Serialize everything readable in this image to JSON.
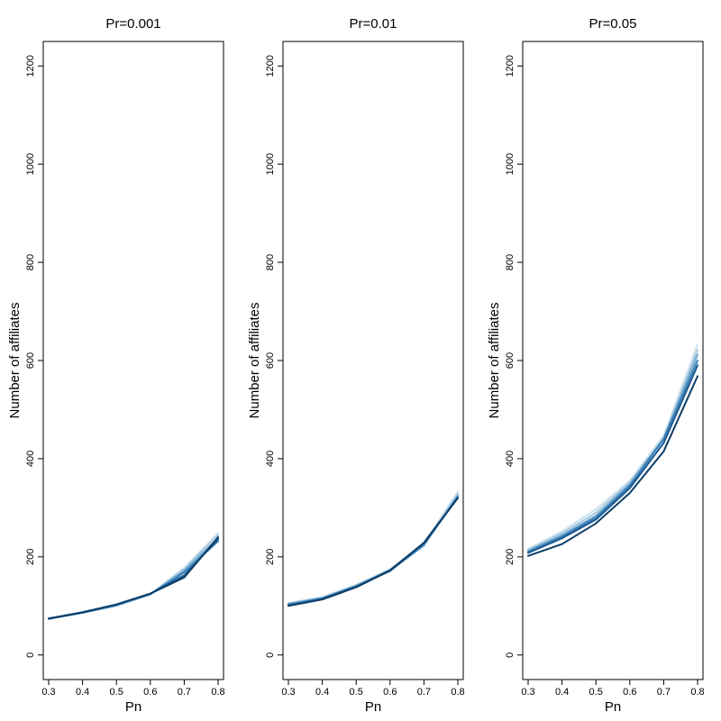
{
  "chart_data": [
    {
      "type": "line",
      "title": "Pr=0.001",
      "xlabel": "Pn",
      "ylabel": "Number of affiliates",
      "x": [
        0.3,
        0.4,
        0.5,
        0.6,
        0.7,
        0.8
      ],
      "x_ticks": [
        "0.3",
        "0.4",
        "0.5",
        "0.6",
        "0.7",
        "0.8"
      ],
      "y_ticks": [
        "0",
        "200",
        "400",
        "600",
        "800",
        "1000",
        "1200"
      ],
      "xlim": [
        0.3,
        0.8
      ],
      "ylim": [
        -50,
        1250
      ],
      "grid": false,
      "series": [
        {
          "color": "#cfe3ef",
          "values": [
            76,
            87,
            101,
            124,
            178,
            248
          ]
        },
        {
          "color": "#a6c9e0",
          "values": [
            75,
            86,
            100,
            123,
            175,
            245
          ]
        },
        {
          "color": "#6fa8cf",
          "values": [
            74,
            86,
            101,
            124,
            172,
            238
          ]
        },
        {
          "color": "#3c7fb4",
          "values": [
            74,
            86,
            102,
            124,
            168,
            232
          ]
        },
        {
          "color": "#1a5a92",
          "values": [
            74,
            87,
            103,
            125,
            162,
            236
          ]
        },
        {
          "color": "#0d3d66",
          "values": [
            74,
            87,
            103,
            125,
            158,
            240
          ]
        }
      ]
    },
    {
      "type": "line",
      "title": "Pr=0.01",
      "xlabel": "Pn",
      "ylabel": "Number of affiliates",
      "x": [
        0.3,
        0.4,
        0.5,
        0.6,
        0.7,
        0.8
      ],
      "x_ticks": [
        "0.3",
        "0.4",
        "0.5",
        "0.6",
        "0.7",
        "0.8"
      ],
      "y_ticks": [
        "0",
        "200",
        "400",
        "600",
        "800",
        "1000",
        "1200"
      ],
      "xlim": [
        0.3,
        0.8
      ],
      "ylim": [
        -50,
        1250
      ],
      "grid": false,
      "series": [
        {
          "color": "#cfe3ef",
          "values": [
            106,
            118,
            143,
            175,
            227,
            333
          ]
        },
        {
          "color": "#a6c9e0",
          "values": [
            105,
            117,
            142,
            174,
            225,
            328
          ]
        },
        {
          "color": "#6fa8cf",
          "values": [
            104,
            116,
            141,
            172,
            223,
            325
          ]
        },
        {
          "color": "#3c7fb4",
          "values": [
            103,
            115,
            140,
            171,
            225,
            322
          ]
        },
        {
          "color": "#1a5a92",
          "values": [
            101,
            114,
            139,
            173,
            228,
            320
          ]
        },
        {
          "color": "#0d3d66",
          "values": [
            100,
            113,
            138,
            172,
            229,
            320
          ]
        }
      ]
    },
    {
      "type": "line",
      "title": "Pr=0.05",
      "xlabel": "Pn",
      "ylabel": "Number of affiliates",
      "x": [
        0.3,
        0.4,
        0.5,
        0.6,
        0.7,
        0.8
      ],
      "x_ticks": [
        "0.3",
        "0.4",
        "0.5",
        "0.6",
        "0.7",
        "0.8"
      ],
      "y_ticks": [
        "0",
        "200",
        "400",
        "600",
        "800",
        "1000",
        "1200"
      ],
      "xlim": [
        0.3,
        0.8
      ],
      "ylim": [
        -50,
        1250
      ],
      "grid": false,
      "series": [
        {
          "color": "#cfe3ef",
          "values": [
            216,
            252,
            297,
            355,
            447,
            633
          ]
        },
        {
          "color": "#a6c9e0",
          "values": [
            214,
            248,
            290,
            352,
            443,
            622
          ]
        },
        {
          "color": "#6fa8cf",
          "values": [
            212,
            244,
            284,
            348,
            440,
            612
          ]
        },
        {
          "color": "#3c7fb4",
          "values": [
            210,
            241,
            280,
            345,
            440,
            600
          ]
        },
        {
          "color": "#1a5a92",
          "values": [
            208,
            238,
            276,
            340,
            432,
            590
          ]
        },
        {
          "color": "#0d3d66",
          "values": [
            202,
            226,
            268,
            330,
            415,
            568
          ]
        }
      ]
    }
  ]
}
